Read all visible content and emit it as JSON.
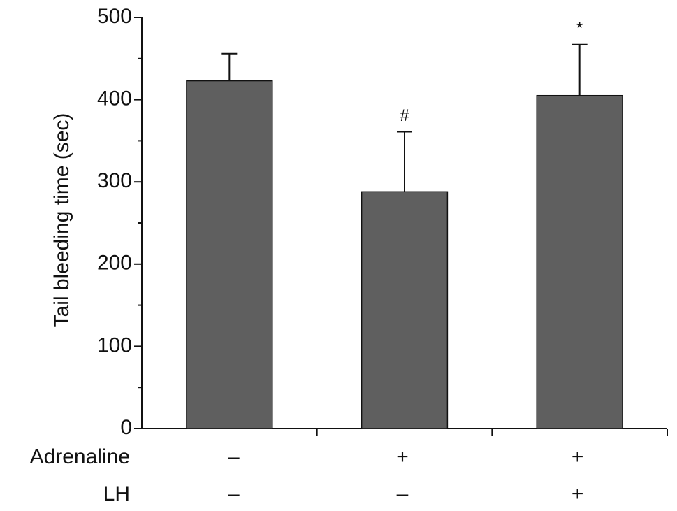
{
  "chart_data": {
    "type": "bar",
    "ylabel": "Tail bleeding time (sec)",
    "values": [
      423,
      288,
      405
    ],
    "errors": [
      33,
      73,
      62
    ],
    "annotations": [
      null,
      "#",
      "*"
    ],
    "factors": [
      {
        "name": "Adrenaline",
        "levels": [
          "–",
          "+",
          "+"
        ]
      },
      {
        "name": "LH",
        "levels": [
          "–",
          "–",
          "+"
        ]
      }
    ],
    "color": "#5f5f5f",
    "ylim": [
      0,
      500
    ],
    "yticks": [
      0,
      100,
      200,
      300,
      400,
      500
    ],
    "yminorticks": [
      50,
      150,
      250,
      350,
      450
    ]
  }
}
